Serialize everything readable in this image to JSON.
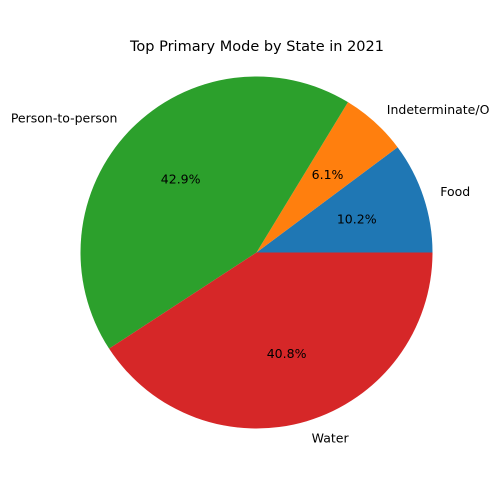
{
  "chart_data": {
    "type": "pie",
    "title": "Top Primary Mode by State in 2021",
    "start_angle_deg": 0,
    "direction": "counterclockwise",
    "slices": [
      {
        "label": "Food",
        "value": 10.2,
        "pct_label": "10.2%",
        "color": "#1f77b4"
      },
      {
        "label": "Indeterminate/Other/Unknown",
        "display_label": "Indeterminate/O",
        "value": 6.1,
        "pct_label": "6.1%",
        "color": "#ff7f0e"
      },
      {
        "label": "Person-to-person",
        "value": 42.9,
        "pct_label": "42.9%",
        "color": "#2ca02c"
      },
      {
        "label": "Water",
        "value": 40.8,
        "pct_label": "40.8%",
        "color": "#d62728"
      }
    ]
  }
}
